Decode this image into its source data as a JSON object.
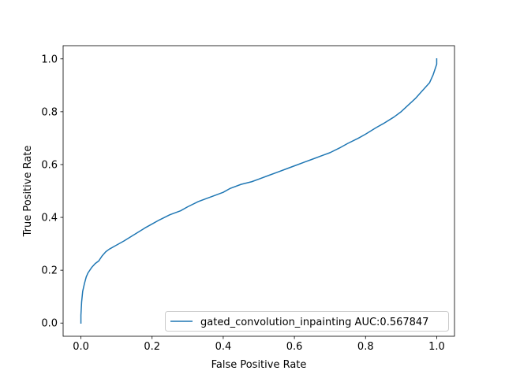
{
  "chart_data": {
    "type": "line",
    "title": "",
    "xlabel": "False Positive Rate",
    "ylabel": "True Positive Rate",
    "xlim": [
      -0.05,
      1.05
    ],
    "ylim": [
      -0.05,
      1.05
    ],
    "xticks": [
      0.0,
      0.2,
      0.4,
      0.6,
      0.8,
      1.0
    ],
    "yticks": [
      0.0,
      0.2,
      0.4,
      0.6,
      0.8,
      1.0
    ],
    "xtick_labels": [
      "0.0",
      "0.2",
      "0.4",
      "0.6",
      "0.8",
      "1.0"
    ],
    "ytick_labels": [
      "0.0",
      "0.2",
      "0.4",
      "0.6",
      "0.8",
      "1.0"
    ],
    "grid": false,
    "legend_position": "lower-right",
    "series": [
      {
        "name": "gated_convolution_inpainting AUC:0.567847",
        "color": "#1f77b4",
        "x": [
          0.0,
          0.0,
          0.002,
          0.005,
          0.01,
          0.015,
          0.02,
          0.03,
          0.04,
          0.05,
          0.06,
          0.07,
          0.08,
          0.1,
          0.12,
          0.15,
          0.18,
          0.2,
          0.22,
          0.25,
          0.28,
          0.3,
          0.33,
          0.35,
          0.38,
          0.4,
          0.42,
          0.45,
          0.48,
          0.5,
          0.53,
          0.55,
          0.58,
          0.6,
          0.63,
          0.65,
          0.68,
          0.7,
          0.73,
          0.75,
          0.78,
          0.8,
          0.83,
          0.85,
          0.88,
          0.9,
          0.92,
          0.94,
          0.96,
          0.98,
          0.99,
          1.0,
          1.0
        ],
        "y": [
          0.0,
          0.03,
          0.08,
          0.12,
          0.15,
          0.175,
          0.19,
          0.21,
          0.225,
          0.235,
          0.255,
          0.27,
          0.28,
          0.295,
          0.31,
          0.335,
          0.36,
          0.375,
          0.39,
          0.41,
          0.425,
          0.44,
          0.46,
          0.47,
          0.485,
          0.495,
          0.51,
          0.525,
          0.535,
          0.545,
          0.56,
          0.57,
          0.585,
          0.595,
          0.61,
          0.62,
          0.635,
          0.645,
          0.665,
          0.68,
          0.7,
          0.715,
          0.74,
          0.755,
          0.78,
          0.8,
          0.825,
          0.85,
          0.88,
          0.91,
          0.94,
          0.98,
          1.0
        ]
      }
    ]
  }
}
